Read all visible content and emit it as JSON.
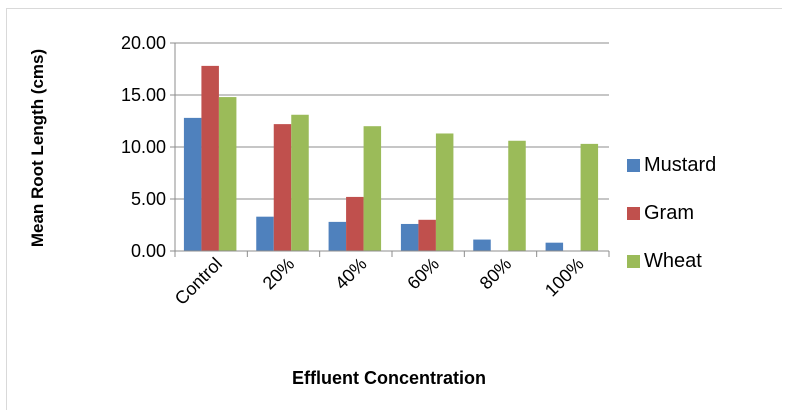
{
  "chart_data": {
    "type": "bar",
    "title": "",
    "xlabel": "Effluent Concentration",
    "ylabel": "Mean Root Length (cms)",
    "categories": [
      "Control",
      "20%",
      "40%",
      "60%",
      "80%",
      "100%"
    ],
    "ylim": [
      0,
      20
    ],
    "yticks": [
      "0.00",
      "5.00",
      "10.00",
      "15.00",
      "20.00"
    ],
    "grid": true,
    "legend_position": "right",
    "series": [
      {
        "name": "Mustard",
        "color": "#4f81bd",
        "values": [
          12.8,
          3.3,
          2.8,
          2.6,
          1.1,
          0.8
        ]
      },
      {
        "name": "Gram",
        "color": "#c0504d",
        "values": [
          17.8,
          12.2,
          5.2,
          3.0,
          0,
          0
        ]
      },
      {
        "name": "Wheat",
        "color": "#9bbb59",
        "values": [
          14.8,
          13.1,
          12.0,
          11.3,
          10.6,
          10.3
        ]
      }
    ]
  }
}
